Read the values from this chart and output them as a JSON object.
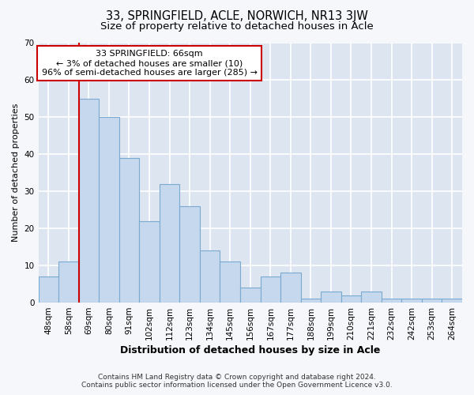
{
  "title": "33, SPRINGFIELD, ACLE, NORWICH, NR13 3JW",
  "subtitle": "Size of property relative to detached houses in Acle",
  "xlabel": "Distribution of detached houses by size in Acle",
  "ylabel": "Number of detached properties",
  "categories": [
    "48sqm",
    "58sqm",
    "69sqm",
    "80sqm",
    "91sqm",
    "102sqm",
    "112sqm",
    "123sqm",
    "134sqm",
    "145sqm",
    "156sqm",
    "167sqm",
    "177sqm",
    "188sqm",
    "199sqm",
    "210sqm",
    "221sqm",
    "232sqm",
    "242sqm",
    "253sqm",
    "264sqm"
  ],
  "values": [
    7,
    11,
    55,
    50,
    39,
    22,
    32,
    26,
    14,
    11,
    4,
    7,
    8,
    1,
    3,
    2,
    3,
    1,
    1,
    1,
    1
  ],
  "bar_color": "#c5d8ee",
  "bar_edge_color": "#7aaad0",
  "annotation_text": "33 SPRINGFIELD: 66sqm\n← 3% of detached houses are smaller (10)\n96% of semi-detached houses are larger (285) →",
  "annotation_box_color": "#ffffff",
  "annotation_box_edge_color": "#cc0000",
  "vline_color": "#cc0000",
  "vline_x_index": 2.0,
  "ylim": [
    0,
    70
  ],
  "yticks": [
    0,
    10,
    20,
    30,
    40,
    50,
    60,
    70
  ],
  "background_color": "#f5f7fb",
  "plot_bg_color": "#dde6f0",
  "grid_color": "#ffffff",
  "footer_line1": "Contains HM Land Registry data © Crown copyright and database right 2024.",
  "footer_line2": "Contains public sector information licensed under the Open Government Licence v3.0.",
  "title_fontsize": 10.5,
  "subtitle_fontsize": 9.5,
  "xlabel_fontsize": 9,
  "ylabel_fontsize": 8,
  "tick_fontsize": 7.5,
  "annotation_fontsize": 8,
  "footer_fontsize": 6.5
}
